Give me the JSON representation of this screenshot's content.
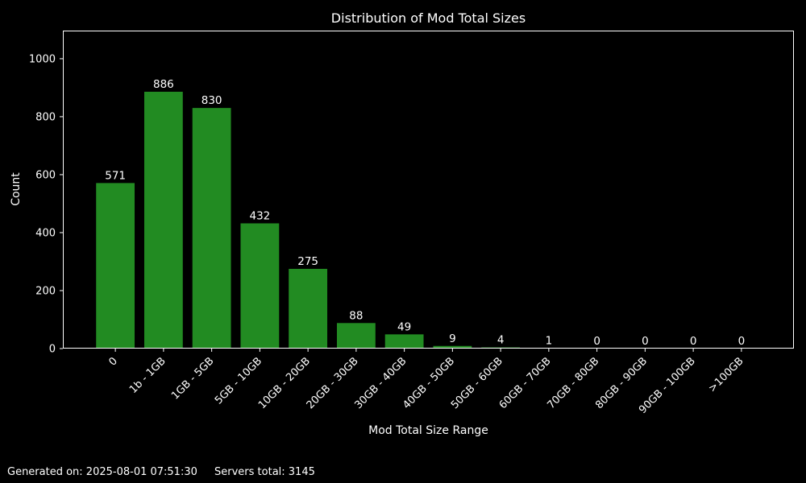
{
  "window": {
    "background": "#000000",
    "text_color": "#ffffff"
  },
  "chart_data": {
    "type": "bar",
    "title": "Distribution of Mod Total Sizes",
    "xlabel": "Mod Total Size Range",
    "ylabel": "Count",
    "categories": [
      "0",
      "1b - 1GB",
      "1GB - 5GB",
      "5GB - 10GB",
      "10GB - 20GB",
      "20GB - 30GB",
      "30GB - 40GB",
      "40GB - 50GB",
      "50GB - 60GB",
      "60GB - 70GB",
      "70GB - 80GB",
      "80GB - 90GB",
      "90GB - 100GB",
      ">100GB"
    ],
    "values": [
      571,
      886,
      830,
      432,
      275,
      88,
      49,
      9,
      4,
      1,
      0,
      0,
      0,
      0
    ],
    "yticks": [
      0,
      200,
      400,
      600,
      800,
      1000
    ],
    "ylim": [
      0,
      1097
    ],
    "bar_color": "#228B22",
    "background": "#000000",
    "text_color": "#ffffff",
    "grid": false,
    "legend": null,
    "value_labels_shown": true,
    "x_tick_rotation_deg": 45
  },
  "footer": {
    "generated": "Generated on: 2025-08-01 07:51:30",
    "servers_total": "Servers total: 3145"
  }
}
